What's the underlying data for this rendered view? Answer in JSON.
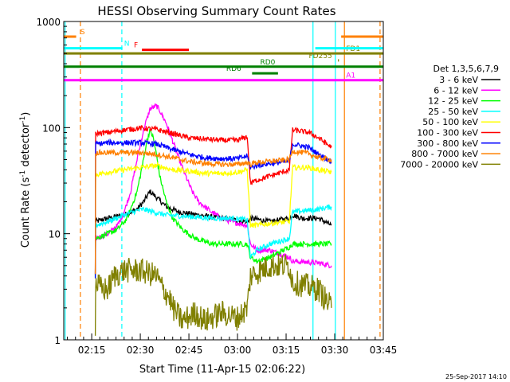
{
  "chart_data": {
    "type": "line",
    "title": "HESSI Observing Summary Count Rates",
    "xlabel": "Start Time (11-Apr-15 02:06:22)",
    "ylabel_main": "Count Rate (s",
    "ylabel_sup1": "-1",
    "ylabel_mid": " detector",
    "ylabel_sup2": "-1",
    "ylabel_end": ")",
    "y_scale": "log",
    "ylim": [
      1,
      1000
    ],
    "xlim_minutes": [
      126.37,
      225
    ],
    "x_ticks": [
      {
        "m": 135,
        "label": "02:15"
      },
      {
        "m": 150,
        "label": "02:30"
      },
      {
        "m": 165,
        "label": "02:45"
      },
      {
        "m": 180,
        "label": "03:00"
      },
      {
        "m": 195,
        "label": "03:15"
      },
      {
        "m": 210,
        "label": "03:30"
      },
      {
        "m": 225,
        "label": "03:45"
      }
    ],
    "y_ticks": [
      {
        "v": 1,
        "label": "1"
      },
      {
        "v": 10,
        "label": "10"
      },
      {
        "v": 100,
        "label": "100"
      },
      {
        "v": 1000,
        "label": "1000"
      }
    ],
    "legend_title": "Det 1,3,5,6,7,9",
    "legend_position": "right",
    "series": [
      {
        "name": "3 - 6 keV",
        "color": "#000000",
        "points": [
          [
            136.1,
            4
          ],
          [
            136.2,
            13
          ],
          [
            140,
            14
          ],
          [
            145,
            15
          ],
          [
            149,
            17
          ],
          [
            151,
            20
          ],
          [
            153,
            25
          ],
          [
            155,
            22
          ],
          [
            158,
            18
          ],
          [
            162,
            16
          ],
          [
            168,
            15
          ],
          [
            175,
            14
          ],
          [
            183,
            13
          ],
          [
            184,
            14
          ],
          [
            190,
            13
          ],
          [
            196,
            14
          ],
          [
            197,
            15
          ],
          [
            200,
            14
          ],
          [
            205,
            14
          ],
          [
            209,
            12
          ]
        ]
      },
      {
        "name": "6 - 12 keV",
        "color": "#ff00ff",
        "points": [
          [
            136.1,
            4
          ],
          [
            136.2,
            9
          ],
          [
            140,
            10
          ],
          [
            143,
            12
          ],
          [
            145,
            16
          ],
          [
            147,
            25
          ],
          [
            149,
            50
          ],
          [
            151,
            95
          ],
          [
            153,
            150
          ],
          [
            155,
            160
          ],
          [
            156,
            145
          ],
          [
            158,
            110
          ],
          [
            160,
            75
          ],
          [
            162,
            50
          ],
          [
            164,
            35
          ],
          [
            166,
            25
          ],
          [
            168,
            20
          ],
          [
            172,
            16
          ],
          [
            175,
            14
          ],
          [
            178,
            13
          ],
          [
            183,
            12
          ],
          [
            184,
            8
          ],
          [
            186,
            7
          ],
          [
            190,
            7
          ],
          [
            196,
            6
          ],
          [
            197,
            5.5
          ],
          [
            205,
            5.3
          ],
          [
            209,
            5
          ]
        ]
      },
      {
        "name": "12 - 25 keV",
        "color": "#00ff00",
        "points": [
          [
            136.1,
            4
          ],
          [
            136.2,
            9
          ],
          [
            140,
            10
          ],
          [
            143,
            11
          ],
          [
            146,
            14
          ],
          [
            149,
            25
          ],
          [
            151,
            50
          ],
          [
            152,
            75
          ],
          [
            153,
            95
          ],
          [
            154,
            80
          ],
          [
            155,
            55
          ],
          [
            156,
            35
          ],
          [
            158,
            20
          ],
          [
            160,
            14
          ],
          [
            163,
            11
          ],
          [
            167,
            9
          ],
          [
            172,
            8
          ],
          [
            178,
            8
          ],
          [
            183,
            8
          ],
          [
            184,
            6
          ],
          [
            186,
            5.5
          ],
          [
            190,
            6
          ],
          [
            196,
            7.5
          ],
          [
            197,
            8
          ],
          [
            205,
            8
          ],
          [
            209,
            8
          ]
        ]
      },
      {
        "name": "25 - 50 keV",
        "color": "#00ffff",
        "points": [
          [
            136.1,
            4
          ],
          [
            136.2,
            12
          ],
          [
            140,
            13
          ],
          [
            145,
            15
          ],
          [
            149,
            16.5
          ],
          [
            151,
            17
          ],
          [
            154,
            16
          ],
          [
            158,
            15
          ],
          [
            165,
            14.5
          ],
          [
            172,
            14
          ],
          [
            178,
            14
          ],
          [
            183,
            13.5
          ],
          [
            184,
            6
          ],
          [
            186,
            7
          ],
          [
            190,
            8
          ],
          [
            196,
            9
          ],
          [
            197,
            16
          ],
          [
            205,
            17
          ],
          [
            209,
            18
          ]
        ]
      },
      {
        "name": "50 - 100 keV",
        "color": "#ffff00",
        "points": [
          [
            136.1,
            4
          ],
          [
            136.2,
            36
          ],
          [
            140,
            38
          ],
          [
            145,
            40
          ],
          [
            150,
            42
          ],
          [
            155,
            44
          ],
          [
            160,
            40
          ],
          [
            165,
            39
          ],
          [
            170,
            37
          ],
          [
            175,
            37
          ],
          [
            180,
            38
          ],
          [
            183,
            40
          ],
          [
            184,
            12
          ],
          [
            186,
            12
          ],
          [
            190,
            12.5
          ],
          [
            196,
            13
          ],
          [
            197,
            42
          ],
          [
            202,
            42
          ],
          [
            205,
            40
          ],
          [
            209,
            38
          ]
        ]
      },
      {
        "name": "100 - 300 keV",
        "color": "#ff0000",
        "points": [
          [
            136.1,
            4
          ],
          [
            136.2,
            88
          ],
          [
            140,
            90
          ],
          [
            145,
            95
          ],
          [
            150,
            99
          ],
          [
            155,
            96
          ],
          [
            160,
            88
          ],
          [
            165,
            80
          ],
          [
            170,
            78
          ],
          [
            175,
            76
          ],
          [
            180,
            76
          ],
          [
            183,
            82
          ],
          [
            184,
            30
          ],
          [
            186,
            32
          ],
          [
            190,
            35
          ],
          [
            196,
            40
          ],
          [
            197,
            95
          ],
          [
            202,
            90
          ],
          [
            205,
            80
          ],
          [
            209,
            65
          ]
        ]
      },
      {
        "name": "300 - 800 keV",
        "color": "#0000ff",
        "points": [
          [
            136.1,
            4
          ],
          [
            136.2,
            70
          ],
          [
            140,
            72
          ],
          [
            145,
            72
          ],
          [
            150,
            72
          ],
          [
            155,
            70
          ],
          [
            160,
            62
          ],
          [
            165,
            56
          ],
          [
            170,
            52
          ],
          [
            175,
            51
          ],
          [
            180,
            51
          ],
          [
            183,
            54
          ],
          [
            184,
            42
          ],
          [
            186,
            44
          ],
          [
            190,
            46
          ],
          [
            196,
            48
          ],
          [
            197,
            70
          ],
          [
            202,
            65
          ],
          [
            205,
            56
          ],
          [
            209,
            48
          ]
        ]
      },
      {
        "name": "800 - 7000 keV",
        "color": "#ff8000",
        "points": [
          [
            136.1,
            4
          ],
          [
            136.2,
            58
          ],
          [
            140,
            58
          ],
          [
            145,
            58
          ],
          [
            150,
            58
          ],
          [
            155,
            56
          ],
          [
            160,
            52
          ],
          [
            165,
            48
          ],
          [
            170,
            46
          ],
          [
            175,
            45
          ],
          [
            180,
            45
          ],
          [
            183,
            47
          ],
          [
            184,
            45
          ],
          [
            186,
            47
          ],
          [
            190,
            48
          ],
          [
            196,
            50
          ],
          [
            197,
            60
          ],
          [
            202,
            57
          ],
          [
            205,
            52
          ],
          [
            209,
            50
          ]
        ]
      },
      {
        "name": "7000 - 20000 keV",
        "color": "#808000",
        "points": [
          [
            136.1,
            1
          ],
          [
            136.2,
            3.5
          ],
          [
            138,
            3
          ],
          [
            140,
            3
          ],
          [
            142,
            4
          ],
          [
            145,
            4.5
          ],
          [
            150,
            4.5
          ],
          [
            155,
            4
          ],
          [
            157,
            3
          ],
          [
            159,
            2.5
          ],
          [
            160,
            2
          ],
          [
            163,
            1.5
          ],
          [
            167,
            1.8
          ],
          [
            170,
            1.5
          ],
          [
            175,
            1.8
          ],
          [
            180,
            1.6
          ],
          [
            183,
            2
          ],
          [
            184,
            4
          ],
          [
            190,
            5
          ],
          [
            196,
            5
          ],
          [
            197,
            3.5
          ],
          [
            205,
            3
          ],
          [
            209,
            2
          ]
        ]
      }
    ],
    "flag_bars": [
      {
        "label": "S",
        "color": "#ff8000",
        "y": 720,
        "x": [
          126.37,
          130.2
        ],
        "label_at": 131.5
      },
      {
        "label": "N",
        "color": "#00ffff",
        "y": 560,
        "x": [
          126.37,
          144.5
        ],
        "label_at": 145
      },
      {
        "label": "F",
        "color": "#ff0000",
        "y": 540,
        "x": [
          150.5,
          165
        ],
        "label_at": 148
      },
      {
        "label": "FD1",
        "color": "#808000",
        "y": 500,
        "x": [
          126.37,
          225
        ],
        "label_at": 213.5
      },
      {
        "label": "FD255",
        "color": "#808000",
        "y": 430,
        "x": [
          211,
          211.2
        ],
        "label_at": 202
      },
      {
        "label": "RD0",
        "color": "#008000",
        "y": 375,
        "x": [
          126.37,
          225
        ],
        "label_at": 187
      },
      {
        "label": "RD6",
        "color": "#008000",
        "y": 325,
        "x": [
          184.5,
          192.5
        ],
        "label_at": 176.5
      },
      {
        "label": "A1",
        "color": "#ff00ff",
        "y": 280,
        "x": [
          126.37,
          225
        ],
        "label_at": 213.5
      },
      {
        "label": "",
        "color": "#ff8000",
        "y": 720,
        "x": [
          212,
          225
        ],
        "label_at": 0
      },
      {
        "label": "",
        "color": "#00ffff",
        "y": 560,
        "x": [
          204,
          225
        ],
        "label_at": 0
      }
    ],
    "vlines": [
      {
        "m": 126.8,
        "color": "#00ffff",
        "dash": false
      },
      {
        "m": 131.5,
        "color": "#ff8000",
        "dash": true
      },
      {
        "m": 144.3,
        "color": "#00ffff",
        "dash": true
      },
      {
        "m": 203.3,
        "color": "#00ffff",
        "dash": false
      },
      {
        "m": 210.2,
        "color": "#00ffff",
        "dash": false
      },
      {
        "m": 213,
        "color": "#ff8000",
        "dash": false
      },
      {
        "m": 224,
        "color": "#ff8000",
        "dash": true
      }
    ]
  },
  "footer_timestamp": "25-Sep-2017 14:10"
}
